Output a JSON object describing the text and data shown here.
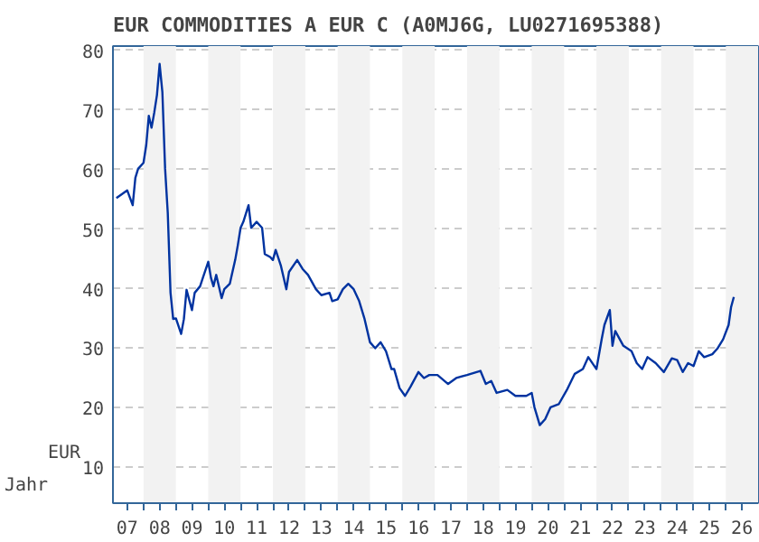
{
  "chart_data": {
    "type": "line",
    "title": "EUR COMMODITIES A EUR C (A0MJ6G, LU0271695388)",
    "xlabel": "Jahr",
    "ylabel": "EUR",
    "x": [
      "2007-03",
      "2007-07",
      "2007-09",
      "2007-10",
      "2007-11",
      "2008-01",
      "2008-02",
      "2008-03",
      "2008-04",
      "2008-05",
      "2008-06",
      "2008-07",
      "2008-08",
      "2008-09",
      "2008-10",
      "2008-11",
      "2008-12",
      "2009-01",
      "2009-03",
      "2009-04",
      "2009-05",
      "2009-07",
      "2009-08",
      "2009-10",
      "2009-11",
      "2010-01",
      "2010-02",
      "2010-03",
      "2010-04",
      "2010-06",
      "2010-07",
      "2010-09",
      "2010-11",
      "2010-12",
      "2011-01",
      "2011-02",
      "2011-04",
      "2011-05",
      "2011-07",
      "2011-09",
      "2011-10",
      "2011-12",
      "2012-01",
      "2012-02",
      "2012-04",
      "2012-06",
      "2012-07",
      "2012-10",
      "2012-12",
      "2013-02",
      "2013-05",
      "2013-07",
      "2013-10",
      "2013-11",
      "2014-01",
      "2014-03",
      "2014-05",
      "2014-07",
      "2014-09",
      "2014-11",
      "2015-01",
      "2015-03",
      "2015-05",
      "2015-07",
      "2015-09",
      "2015-10",
      "2015-12",
      "2016-02",
      "2016-04",
      "2016-07",
      "2016-09",
      "2016-11",
      "2017-02",
      "2017-06",
      "2017-09",
      "2018-01",
      "2018-06",
      "2018-08",
      "2018-10",
      "2018-12",
      "2019-04",
      "2019-07",
      "2019-11",
      "2020-01",
      "2020-02",
      "2020-04",
      "2020-06",
      "2020-08",
      "2020-11",
      "2021-02",
      "2021-05",
      "2021-08",
      "2021-10",
      "2022-01",
      "2022-03",
      "2022-04",
      "2022-06",
      "2022-07",
      "2022-08",
      "2022-11",
      "2023-02",
      "2023-04",
      "2023-06",
      "2023-08",
      "2023-11",
      "2024-02",
      "2024-05",
      "2024-07",
      "2024-09",
      "2024-11",
      "2025-01",
      "2025-03",
      "2025-05",
      "2025-08",
      "2025-10",
      "2025-12",
      "2026-02",
      "2026-03",
      "2026-04"
    ],
    "series": [
      {
        "color": "#0033a0",
        "values": [
          55.2,
          56.5,
          54,
          58.6,
          60.1,
          61.1,
          64.1,
          69,
          67,
          69.5,
          72.5,
          77.7,
          73,
          60.1,
          52.7,
          39.3,
          34.9,
          35,
          32.4,
          34.9,
          39.8,
          36.4,
          39.3,
          40.4,
          41.8,
          44.5,
          41.8,
          40.4,
          42.3,
          38.4,
          39.9,
          40.8,
          44.8,
          47.3,
          50.2,
          51.2,
          54,
          50.2,
          51.2,
          50.2,
          45.8,
          45.3,
          44.8,
          46.5,
          43.8,
          39.9,
          42.8,
          44.8,
          43.3,
          42.3,
          39.9,
          38.9,
          39.3,
          37.9,
          38.2,
          39.9,
          40.8,
          39.9,
          37.9,
          34.9,
          31,
          30,
          31,
          29.5,
          26.5,
          26.5,
          23.3,
          22,
          23.5,
          26,
          25,
          25.5,
          25.5,
          24,
          25,
          25.5,
          26.2,
          24,
          24.5,
          22.5,
          23,
          22,
          22,
          22.5,
          20.1,
          17.1,
          18.1,
          20.1,
          20.6,
          23,
          25.7,
          26.5,
          28.5,
          26.5,
          31.5,
          33.9,
          36.4,
          30.4,
          32.9,
          30.4,
          29.5,
          27.5,
          26.5,
          28.5,
          27.5,
          26,
          28.3,
          28,
          26,
          27.5,
          27,
          29.5,
          28.5,
          29,
          30,
          31.5,
          33.9,
          36.9,
          38.6
        ]
      }
    ],
    "xlim": [
      "2007-01-21",
      "2026-12-31"
    ],
    "xticks": [
      {
        "value": "2008-01-01",
        "label": null
      },
      {
        "value": "2009-01-01",
        "label": null
      },
      {
        "value": "2010-01-01",
        "label": null
      },
      {
        "value": "2011-01-01",
        "label": null
      },
      {
        "value": "2012-01-01",
        "label": null
      },
      {
        "value": "2013-01-01",
        "label": null
      },
      {
        "value": "2014-01-01",
        "label": null
      },
      {
        "value": "2015-01-01",
        "label": null
      },
      {
        "value": "2016-01-01",
        "label": null
      },
      {
        "value": "2017-01-01",
        "label": null
      },
      {
        "value": "2018-01-01",
        "label": null
      },
      {
        "value": "2019-01-01",
        "label": null
      },
      {
        "value": "2020-01-01",
        "label": null
      },
      {
        "value": "2021-01-01",
        "label": null
      },
      {
        "value": "2022-01-01",
        "label": null
      },
      {
        "value": "2023-01-01",
        "label": null
      },
      {
        "value": "2024-01-01",
        "label": null
      },
      {
        "value": "2025-01-01",
        "label": null
      },
      {
        "value": "2026-01-01",
        "label": null
      },
      {
        "value": "2007-07-02",
        "label": "07"
      },
      {
        "value": "2008-07-02",
        "label": "08"
      },
      {
        "value": "2009-07-02",
        "label": "09"
      },
      {
        "value": "2010-07-02",
        "label": "10"
      },
      {
        "value": "2011-07-02",
        "label": "11"
      },
      {
        "value": "2012-07-02",
        "label": "12"
      },
      {
        "value": "2013-07-02",
        "label": "13"
      },
      {
        "value": "2014-07-02",
        "label": "14"
      },
      {
        "value": "2015-07-02",
        "label": "15"
      },
      {
        "value": "2016-07-02",
        "label": "16"
      },
      {
        "value": "2017-07-02",
        "label": "17"
      },
      {
        "value": "2018-07-02",
        "label": "18"
      },
      {
        "value": "2019-07-02",
        "label": "19"
      },
      {
        "value": "2020-07-02",
        "label": "20"
      },
      {
        "value": "2021-07-02",
        "label": "21"
      },
      {
        "value": "2022-07-02",
        "label": "22"
      },
      {
        "value": "2023-07-02",
        "label": "23"
      },
      {
        "value": "2024-07-02",
        "label": "24"
      },
      {
        "value": "2025-07-02",
        "label": "25"
      },
      {
        "value": "2026-07-02",
        "label": "26"
      }
    ],
    "ylim": [
      4,
      80.7
    ],
    "yticks": [
      10,
      20,
      30,
      40,
      50,
      60,
      70,
      80
    ],
    "grid": "y",
    "line_style": "solid",
    "bands": [
      {
        "axis": "x",
        "from": "2008-01-01",
        "to": "2009-01-01",
        "color": "#f2f2f2"
      },
      {
        "axis": "x",
        "from": "2010-01-01",
        "to": "2011-01-01",
        "color": "#f2f2f2"
      },
      {
        "axis": "x",
        "from": "2012-01-01",
        "to": "2013-01-01",
        "color": "#f2f2f2"
      },
      {
        "axis": "x",
        "from": "2014-01-01",
        "to": "2015-01-01",
        "color": "#f2f2f2"
      },
      {
        "axis": "x",
        "from": "2016-01-01",
        "to": "2017-01-01",
        "color": "#f2f2f2"
      },
      {
        "axis": "x",
        "from": "2018-01-01",
        "to": "2019-01-01",
        "color": "#f2f2f2"
      },
      {
        "axis": "x",
        "from": "2020-01-01",
        "to": "2021-01-01",
        "color": "#f2f2f2"
      },
      {
        "axis": "x",
        "from": "2022-01-01",
        "to": "2023-01-01",
        "color": "#f2f2f2"
      },
      {
        "axis": "x",
        "from": "2024-01-01",
        "to": "2025-01-01",
        "color": "#f2f2f2"
      },
      {
        "axis": "x",
        "from": "2026-01-01",
        "to": "2026-12-31",
        "color": "#f2f2f2"
      }
    ]
  }
}
